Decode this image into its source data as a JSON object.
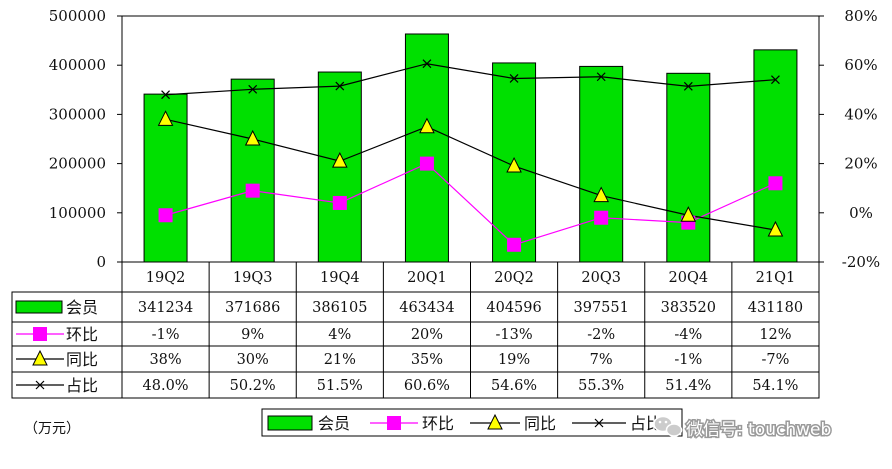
{
  "chart_data": {
    "type": "bar",
    "categories": [
      "19Q2",
      "19Q3",
      "19Q4",
      "20Q1",
      "20Q2",
      "20Q3",
      "20Q4",
      "21Q1"
    ],
    "series": [
      {
        "name": "会员",
        "kind": "bar",
        "axis": "left",
        "color": "#00e000",
        "values": [
          341234,
          371686,
          386105,
          463434,
          404596,
          397551,
          383520,
          431180
        ],
        "labels": [
          "341234",
          "371686",
          "386105",
          "463434",
          "404596",
          "397551",
          "383520",
          "431180"
        ]
      },
      {
        "name": "环比",
        "kind": "line",
        "axis": "right",
        "color": "#ff00ff",
        "marker": "square",
        "values": [
          -1,
          9,
          4,
          20,
          -13,
          -2,
          -4,
          12
        ],
        "labels": [
          "-1%",
          "9%",
          "4%",
          "20%",
          "-13%",
          "-2%",
          "-4%",
          "12%"
        ]
      },
      {
        "name": "同比",
        "kind": "line",
        "axis": "right",
        "color": "#000000",
        "marker": "triangle",
        "marker_color": "#ffff00",
        "values": [
          38,
          30,
          21,
          35,
          19,
          7,
          -1,
          -7
        ],
        "labels": [
          "38%",
          "30%",
          "21%",
          "35%",
          "19%",
          "7%",
          "-1%",
          "-7%"
        ]
      },
      {
        "name": "占比",
        "kind": "line",
        "axis": "right",
        "color": "#000000",
        "marker": "x",
        "values": [
          48.0,
          50.2,
          51.5,
          60.6,
          54.6,
          55.3,
          51.4,
          54.1
        ],
        "labels": [
          "48.0%",
          "50.2%",
          "51.5%",
          "60.6%",
          "54.6%",
          "55.3%",
          "51.4%",
          "54.1%"
        ]
      }
    ],
    "ylim_left": [
      0,
      500000
    ],
    "yticks_left": [
      "500000",
      "400000",
      "300000",
      "200000",
      "100000",
      "0"
    ],
    "ylim_right": [
      -20,
      80
    ],
    "yticks_right": [
      "80%",
      "60%",
      "40%",
      "20%",
      "0%",
      "-20%"
    ],
    "unit": "（万元）",
    "legend_position": "bottom",
    "data_table": true,
    "grid": false
  },
  "watermark": {
    "text": "微信号: touchweb",
    "icon": "wechat-icon"
  }
}
